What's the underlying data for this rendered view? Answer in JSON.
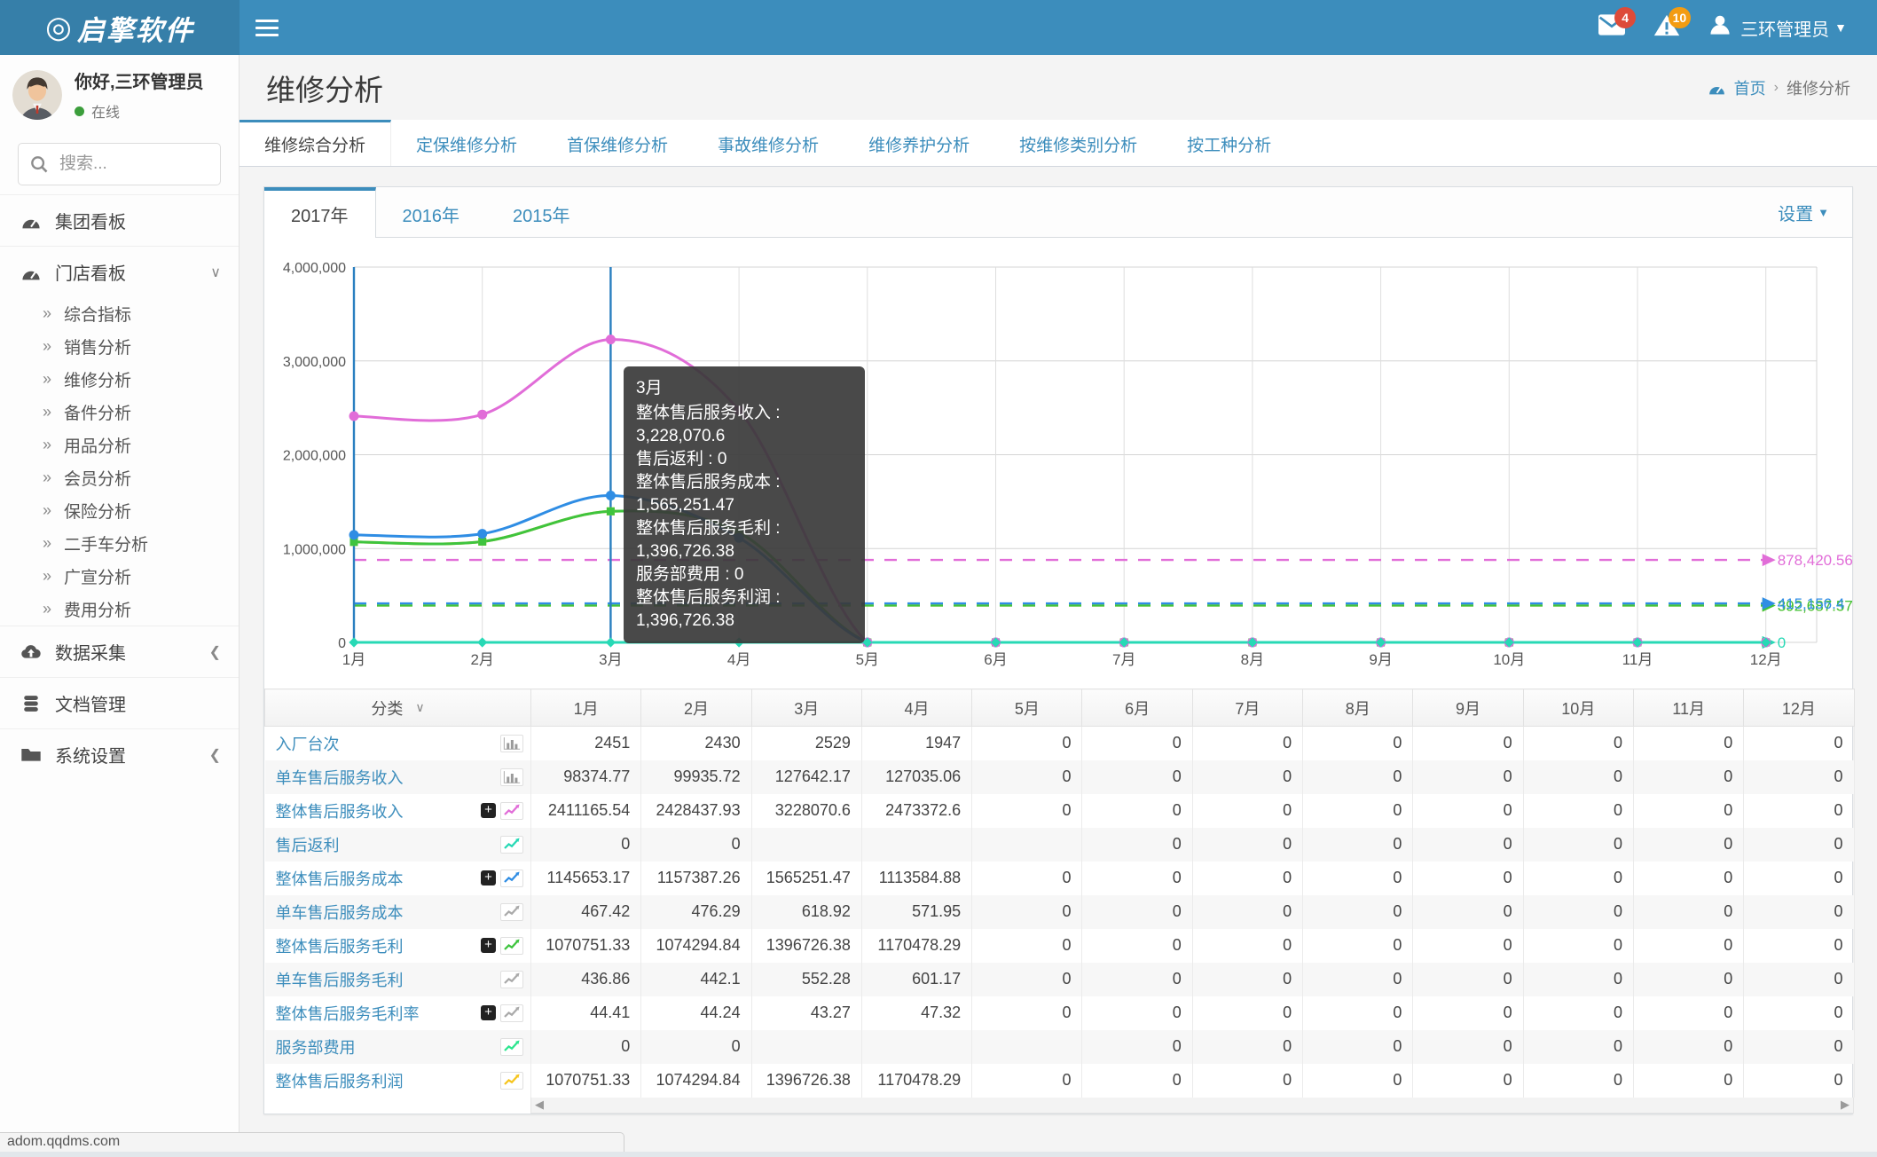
{
  "navbar": {
    "logo": "启擎软件",
    "messages_badge": "4",
    "alerts_badge": "10",
    "user": "三环管理员"
  },
  "sidebar": {
    "greeting": "你好,三环管理员",
    "status": "在线",
    "search_placeholder": "搜索...",
    "menu": [
      {
        "name": "group-dashboard",
        "label": "集团看板",
        "icon": "dashboard-icon",
        "chevron": ""
      },
      {
        "name": "store-dashboard",
        "label": "门店看板",
        "icon": "dashboard-icon",
        "chevron": "down",
        "children": [
          {
            "name": "composite-index",
            "label": "综合指标"
          },
          {
            "name": "sales-analysis",
            "label": "销售分析"
          },
          {
            "name": "maintenance-analysis",
            "label": "维修分析"
          },
          {
            "name": "parts-analysis",
            "label": "备件分析"
          },
          {
            "name": "goods-analysis",
            "label": "用品分析"
          },
          {
            "name": "member-analysis",
            "label": "会员分析"
          },
          {
            "name": "insurance-analysis",
            "label": "保险分析"
          },
          {
            "name": "used-car-analysis",
            "label": "二手车分析"
          },
          {
            "name": "advertising-analysis",
            "label": "广宣分析"
          },
          {
            "name": "expense-analysis",
            "label": "费用分析"
          }
        ]
      },
      {
        "name": "data-collection",
        "label": "数据采集",
        "icon": "cloud-upload-icon",
        "chevron": "left"
      },
      {
        "name": "document-management",
        "label": "文档管理",
        "icon": "database-icon",
        "chevron": ""
      },
      {
        "name": "system-settings",
        "label": "系统设置",
        "icon": "folder-icon",
        "chevron": "left"
      }
    ]
  },
  "header": {
    "title": "维修分析",
    "breadcrumb_home": "首页",
    "breadcrumb_current": "维修分析"
  },
  "tabs": {
    "active_index": 0,
    "items": [
      {
        "name": "tab-maintenance-composite",
        "label": "维修综合分析"
      },
      {
        "name": "tab-scheduled-maintenance",
        "label": "定保维修分析"
      },
      {
        "name": "tab-first-maintenance",
        "label": "首保维修分析"
      },
      {
        "name": "tab-accident-maintenance",
        "label": "事故维修分析"
      },
      {
        "name": "tab-maintenance-care",
        "label": "维修养护分析"
      },
      {
        "name": "tab-by-maintenance-type",
        "label": "按维修类别分析"
      },
      {
        "name": "tab-by-work-type",
        "label": "按工种分析"
      }
    ]
  },
  "year_tabs": {
    "active_index": 0,
    "items": [
      "2017年",
      "2016年",
      "2015年"
    ]
  },
  "settings_label": "设置",
  "chart_data": {
    "type": "line",
    "categories": [
      "1月",
      "2月",
      "3月",
      "4月",
      "5月",
      "6月",
      "7月",
      "8月",
      "9月",
      "10月",
      "11月",
      "12月"
    ],
    "ylim": [
      0,
      4000000
    ],
    "ytick_labels": [
      "4,000,000",
      "3,000,000",
      "2,000,000",
      "1,000,000",
      "0"
    ],
    "grid": true,
    "legend_position": "none",
    "hover_category_index": 2,
    "series": [
      {
        "name": "整体售后服务利润",
        "color": "#f6c51e",
        "marker": "rect",
        "values": [
          1070751.33,
          1074294.84,
          1396726.38,
          1170478.29,
          0,
          0,
          0,
          0,
          0,
          0,
          0,
          0
        ],
        "avg": 392687.57,
        "avg_label": "392,687.57"
      },
      {
        "name": "整体售后服务毛利",
        "color": "#3ec43e",
        "marker": "rect",
        "values": [
          1070751.33,
          1074294.84,
          1396726.38,
          1170478.29,
          0,
          0,
          0,
          0,
          0,
          0,
          0,
          0
        ],
        "avg": 392687.57,
        "avg_label": "392,687.57"
      },
      {
        "name": "整体售后服务成本",
        "color": "#2f8de4",
        "marker": "circle",
        "values": [
          1145653.17,
          1157387.26,
          1565251.47,
          1113584.88,
          0,
          0,
          0,
          0,
          0,
          0,
          0,
          0
        ],
        "avg": 415156.4,
        "avg_label": "415,156.4"
      },
      {
        "name": "整体售后服务收入",
        "color": "#e16dd8",
        "marker": "circle",
        "values": [
          2411165.54,
          2428437.93,
          3228070.6,
          2473372.6,
          0,
          0,
          0,
          0,
          0,
          0,
          0,
          0
        ],
        "avg": 878420.56,
        "avg_label": "878,420.56"
      },
      {
        "name": "服务部费用",
        "color": "#2ce68f",
        "marker": "none",
        "values": [
          0,
          0,
          0,
          0,
          0,
          0,
          0,
          0,
          0,
          0,
          0,
          0
        ],
        "avg": 0,
        "avg_label": ""
      },
      {
        "name": "售后返利",
        "color": "#27d9b5",
        "marker": "diamond",
        "values": [
          0,
          0,
          0,
          0,
          0,
          0,
          0,
          0,
          0,
          0,
          0,
          0
        ],
        "avg": 0,
        "avg_label": "0"
      }
    ]
  },
  "tooltip": {
    "title": "3月",
    "rows": [
      {
        "label": "整体售后服务收入",
        "value": "3,228,070.6"
      },
      {
        "label": "售后返利",
        "value": "0"
      },
      {
        "label": "整体售后服务成本",
        "value": "1,565,251.47"
      },
      {
        "label": "整体售后服务毛利",
        "value": "1,396,726.38"
      },
      {
        "label": "服务部费用",
        "value": "0"
      },
      {
        "label": "整体售后服务利润",
        "value": "1,396,726.38"
      }
    ]
  },
  "table": {
    "category_header": "分类",
    "month_headers": [
      "1月",
      "2月",
      "3月",
      "4月",
      "5月",
      "6月",
      "7月",
      "8月",
      "9月",
      "10月",
      "11月",
      "12月"
    ],
    "rows": [
      {
        "name": "entry-count",
        "label": "入厂台次",
        "plus": false,
        "icon": "bar",
        "icon_color": "#9a9a9a",
        "values": [
          "2451",
          "2430",
          "2529",
          "1947",
          "0",
          "0",
          "0",
          "0",
          "0",
          "0",
          "0",
          "0"
        ]
      },
      {
        "name": "per-car-service-revenue",
        "label": "单车售后服务收入",
        "plus": false,
        "icon": "bar",
        "icon_color": "#9a9a9a",
        "values": [
          "98374.77",
          "99935.72",
          "127642.17",
          "127035.06",
          "0",
          "0",
          "0",
          "0",
          "0",
          "0",
          "0",
          "0"
        ]
      },
      {
        "name": "total-service-revenue",
        "label": "整体售后服务收入",
        "plus": true,
        "icon": "spark",
        "icon_color": "#e16dd8",
        "values": [
          "2411165.54",
          "2428437.93",
          "3228070.6",
          "2473372.6",
          "0",
          "0",
          "0",
          "0",
          "0",
          "0",
          "0",
          "0"
        ]
      },
      {
        "name": "after-sale-rebate",
        "label": "售后返利",
        "plus": false,
        "icon": "spark",
        "icon_color": "#27d9b5",
        "values": [
          "0",
          "0",
          "",
          "",
          "",
          "0",
          "0",
          "0",
          "0",
          "0",
          "0",
          "0"
        ]
      },
      {
        "name": "total-service-cost",
        "label": "整体售后服务成本",
        "plus": true,
        "icon": "spark",
        "icon_color": "#2f8de4",
        "values": [
          "1145653.17",
          "1157387.26",
          "1565251.47",
          "1113584.88",
          "0",
          "0",
          "0",
          "0",
          "0",
          "0",
          "0",
          "0"
        ]
      },
      {
        "name": "per-car-service-cost",
        "label": "单车售后服务成本",
        "plus": false,
        "icon": "spark",
        "icon_color": "#aaaaaa",
        "values": [
          "467.42",
          "476.29",
          "618.92",
          "571.95",
          "0",
          "0",
          "0",
          "0",
          "0",
          "0",
          "0",
          "0"
        ]
      },
      {
        "name": "total-service-gross-profit",
        "label": "整体售后服务毛利",
        "plus": true,
        "icon": "spark",
        "icon_color": "#3ec43e",
        "values": [
          "1070751.33",
          "1074294.84",
          "1396726.38",
          "1170478.29",
          "0",
          "0",
          "0",
          "0",
          "0",
          "0",
          "0",
          "0"
        ]
      },
      {
        "name": "per-car-service-gross-profit",
        "label": "单车售后服务毛利",
        "plus": false,
        "icon": "spark",
        "icon_color": "#aaaaaa",
        "values": [
          "436.86",
          "442.1",
          "552.28",
          "601.17",
          "0",
          "0",
          "0",
          "0",
          "0",
          "0",
          "0",
          "0"
        ]
      },
      {
        "name": "gross-profit-margin",
        "label": "整体售后服务毛利率",
        "plus": true,
        "icon": "spark",
        "icon_color": "#aaaaaa",
        "values": [
          "44.41",
          "44.24",
          "43.27",
          "47.32",
          "0",
          "0",
          "0",
          "0",
          "0",
          "0",
          "0",
          "0"
        ]
      },
      {
        "name": "service-dept-expense",
        "label": "服务部费用",
        "plus": false,
        "icon": "spark",
        "icon_color": "#2ce68f",
        "values": [
          "0",
          "0",
          "",
          "",
          "",
          "0",
          "0",
          "0",
          "0",
          "0",
          "0",
          "0"
        ]
      },
      {
        "name": "total-service-profit",
        "label": "整体售后服务利润",
        "plus": false,
        "icon": "spark",
        "icon_color": "#f6c51e",
        "values": [
          "1070751.33",
          "1074294.84",
          "1396726.38",
          "1170478.29",
          "0",
          "0",
          "0",
          "0",
          "0",
          "0",
          "0",
          "0"
        ]
      }
    ]
  },
  "statusbar": "adom.qqdms.com"
}
